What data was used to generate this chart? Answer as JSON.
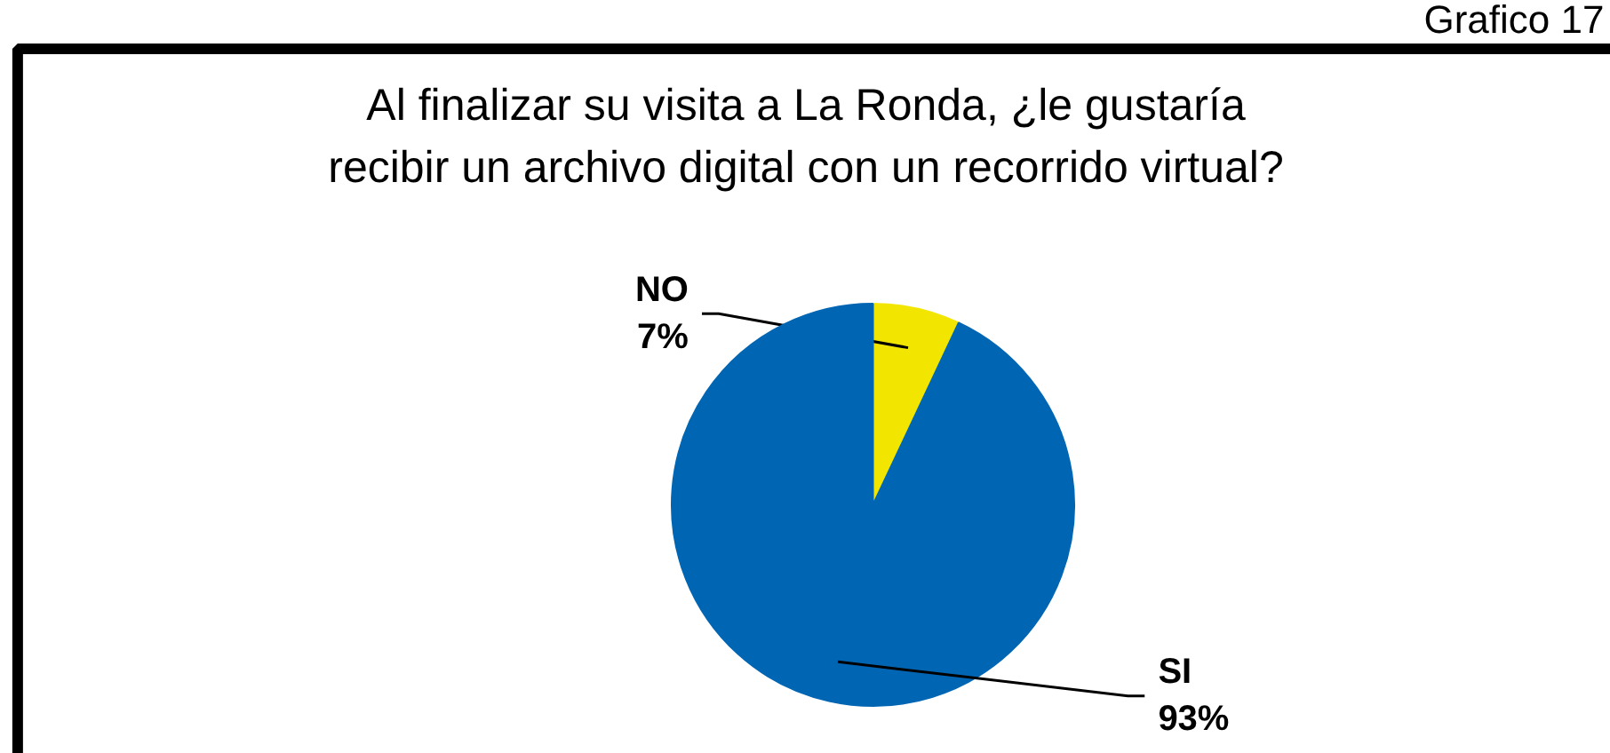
{
  "chart_data": {
    "type": "pie",
    "title": "Al finalizar su visita a La Ronda, ¿le gustaría\nrecibir un archivo digital con un recorrido virtual?",
    "annotations": [
      "Grafico 17"
    ],
    "categories": [
      "NO",
      "SI"
    ],
    "values": [
      7,
      93
    ],
    "colors": [
      "#f2e600",
      "#0066b3"
    ],
    "value_labels": [
      "7%",
      "93%"
    ]
  }
}
